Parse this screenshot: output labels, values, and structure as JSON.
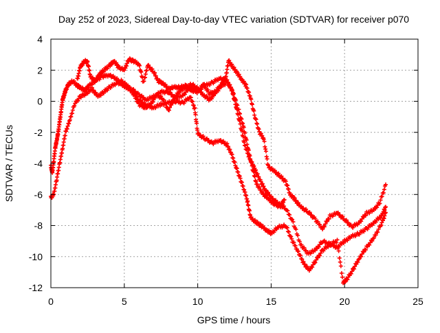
{
  "chart_data": {
    "type": "scatter",
    "title": "Day 252 of 2023, Sidereal Day-to-day VTEC variation (SDTVAR) for receiver p070",
    "xlabel": "GPS time / hours",
    "ylabel": "SDTVAR / TECUs",
    "xlim": [
      0,
      25
    ],
    "ylim": [
      -12,
      4
    ],
    "xticks": [
      0,
      5,
      10,
      15,
      20,
      25
    ],
    "yticks": [
      -12,
      -10,
      -8,
      -6,
      -4,
      -2,
      0,
      2,
      4
    ],
    "grid": true,
    "marker": "plus",
    "color": "#ff0000",
    "series": [
      {
        "x": [
          0.0,
          0.1,
          0.2,
          0.3,
          0.4,
          0.5,
          0.6,
          0.7,
          0.8,
          0.9,
          1.0,
          1.2,
          1.5,
          1.8,
          2.0,
          2.3,
          2.6,
          3.0,
          3.5,
          4.0,
          4.5,
          5.0,
          5.5,
          6.0,
          6.5,
          7.0,
          7.5,
          8.0,
          8.5,
          9.0,
          9.5,
          10.0,
          10.5,
          11.0,
          11.5,
          12.0,
          12.3,
          12.6,
          12.9,
          13.2,
          13.5,
          13.8,
          14.0,
          14.3,
          14.6,
          15.0,
          15.5,
          16.0,
          16.5,
          17.0,
          17.5,
          18.0,
          18.5,
          19.0,
          19.5,
          20.0,
          20.5,
          21.0,
          21.5,
          22.0,
          22.5,
          22.8
        ],
        "y": [
          -4.2,
          -4.6,
          -3.8,
          -3.0,
          -2.5,
          -2.0,
          -1.3,
          -0.6,
          0.1,
          0.4,
          0.7,
          1.1,
          1.3,
          1.0,
          0.9,
          0.7,
          1.0,
          1.3,
          1.6,
          1.7,
          1.4,
          0.9,
          0.8,
          0.4,
          0.1,
          0.3,
          0.6,
          0.6,
          0.2,
          0.4,
          0.9,
          0.7,
          1.0,
          1.2,
          1.5,
          1.3,
          0.8,
          -0.3,
          -1.5,
          -2.8,
          -3.6,
          -4.2,
          -4.6,
          -5.2,
          -5.7,
          -6.2,
          -6.6,
          -6.9,
          -7.8,
          -9.2,
          -9.8,
          -9.6,
          -9.0,
          -9.2,
          -9.4,
          -9.0,
          -8.7,
          -8.5,
          -8.2,
          -7.8,
          -7.4,
          -6.8
        ]
      },
      {
        "x": [
          0.0,
          0.2,
          0.4,
          0.6,
          0.8,
          1.0,
          1.3,
          1.6,
          2.0,
          2.4,
          2.8,
          3.2,
          3.6,
          4.0,
          4.5,
          5.0,
          5.5,
          6.0,
          6.5,
          7.0,
          7.5,
          8.0,
          8.5,
          9.0,
          9.5,
          9.8,
          10.0,
          10.5,
          11.0,
          11.5,
          12.0,
          12.3,
          12.6,
          12.9,
          13.2,
          13.4,
          13.6,
          14.0,
          14.3,
          14.7,
          15.0,
          15.5,
          16.0,
          16.4,
          16.8,
          17.2,
          17.6,
          18.0,
          18.5,
          19.0,
          19.5,
          19.9,
          20.2,
          20.6,
          21.0,
          21.5,
          22.0,
          22.5,
          22.8
        ],
        "y": [
          -6.2,
          -6.0,
          -5.0,
          -4.0,
          -3.0,
          -2.0,
          -1.2,
          -0.2,
          0.3,
          0.5,
          0.8,
          0.3,
          0.6,
          0.9,
          1.2,
          1.1,
          0.7,
          0.1,
          -0.3,
          -0.4,
          -0.2,
          -0.1,
          0.0,
          -0.1,
          0.3,
          -0.5,
          -2.1,
          -2.4,
          -2.7,
          -2.5,
          -2.8,
          -3.4,
          -4.2,
          -5.0,
          -5.8,
          -6.5,
          -7.5,
          -7.8,
          -8.0,
          -8.3,
          -8.5,
          -8.1,
          -8.0,
          -8.9,
          -9.6,
          -10.4,
          -10.9,
          -10.3,
          -9.6,
          -9.2,
          -9.0,
          -11.7,
          -11.4,
          -10.8,
          -10.1,
          -9.4,
          -8.8,
          -7.9,
          -7.2
        ]
      },
      {
        "x": [
          1.8,
          2.0,
          2.3,
          2.5,
          2.7,
          3.0,
          3.3,
          3.6,
          4.0,
          4.3,
          4.6,
          5.0,
          5.3,
          5.6,
          6.0,
          6.3,
          6.6,
          7.0,
          7.3,
          7.6,
          8.0,
          8.4,
          8.8,
          9.2,
          9.6,
          10.0,
          10.4,
          10.8,
          11.2,
          11.6,
          11.9,
          12.1,
          12.4,
          12.7,
          13.0,
          13.3,
          13.6,
          13.9,
          14.2,
          14.5,
          14.8,
          15.2,
          15.6,
          16.0,
          16.3,
          16.6,
          17.0,
          17.5,
          18.0,
          18.5,
          19.0,
          19.5,
          20.0,
          20.5,
          21.0,
          21.5,
          22.0,
          22.4,
          22.8
        ],
        "y": [
          1.4,
          2.2,
          2.6,
          2.5,
          1.6,
          1.3,
          1.7,
          2.0,
          2.3,
          2.6,
          2.2,
          2.0,
          2.7,
          2.6,
          2.4,
          1.2,
          2.3,
          1.9,
          1.3,
          1.2,
          0.8,
          0.9,
          0.9,
          1.0,
          0.7,
          0.6,
          1.1,
          0.5,
          0.6,
          1.1,
          1.5,
          2.6,
          2.2,
          1.8,
          1.4,
          1.0,
          0.2,
          -1.0,
          -2.0,
          -2.4,
          -4.2,
          -4.5,
          -4.8,
          -5.2,
          -6.0,
          -6.3,
          -6.8,
          -7.1,
          -7.6,
          -8.2,
          -7.4,
          -7.2,
          -7.6,
          -8.1,
          -7.8,
          -7.2,
          -7.0,
          -6.5,
          -5.4
        ]
      },
      {
        "x": [
          4.8,
          5.2,
          5.6,
          6.0,
          6.4,
          6.8,
          7.2,
          7.6,
          8.0,
          8.4,
          8.8,
          9.2,
          9.6,
          10.0,
          10.4,
          10.8,
          11.2,
          11.6,
          12.0,
          12.4,
          12.8,
          13.1,
          13.4,
          13.7,
          14.0,
          14.4,
          14.8,
          15.2,
          15.6,
          15.9
        ],
        "y": [
          1.3,
          1.0,
          0.5,
          -0.2,
          -0.4,
          -0.2,
          0.4,
          0.2,
          -0.6,
          0.2,
          0.7,
          0.9,
          1.1,
          0.8,
          0.4,
          0.1,
          0.5,
          1.0,
          1.2,
          0.6,
          -0.6,
          -1.6,
          -2.9,
          -4.2,
          -5.3,
          -5.9,
          -6.3,
          -6.6,
          -6.8,
          -6.3
        ]
      }
    ]
  }
}
